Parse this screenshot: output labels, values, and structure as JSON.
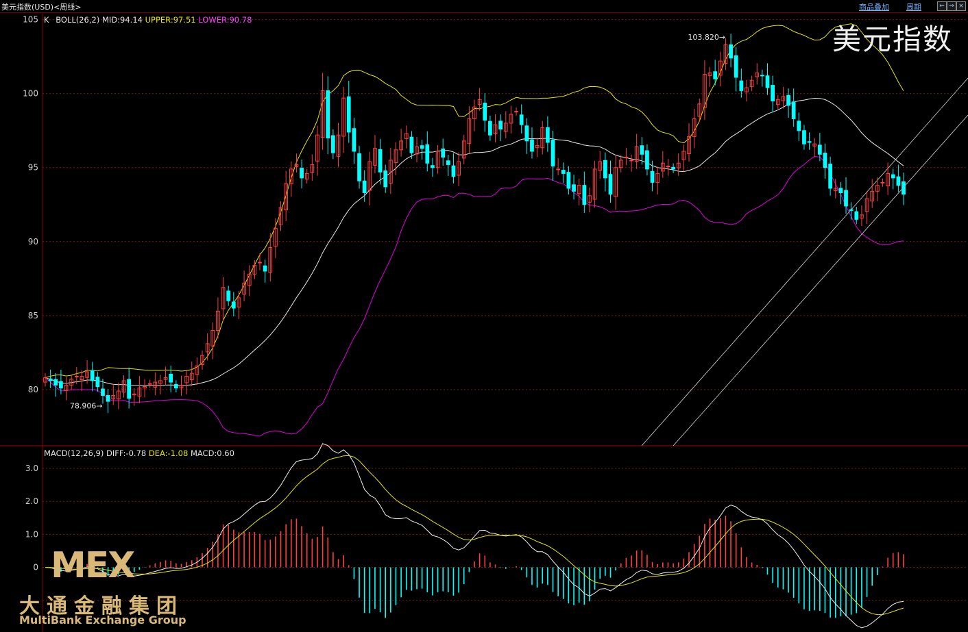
{
  "window": {
    "title": "美元指数(USD)<周线>",
    "buttons": [
      "商品叠加",
      "周期"
    ],
    "small_buttons": [
      "⇐",
      "⇒",
      "×"
    ]
  },
  "watermark": "美元指数",
  "logo": {
    "mark": "MEX",
    "chinese": "大通金融集团",
    "english": "MultiBank Exchange Group"
  },
  "colors": {
    "up": "#ff4040",
    "down": "#00ffff",
    "mid": "#e8e8e8",
    "upper": "#e6e600",
    "lower": "#e000e0",
    "grid": "#7a1a1a"
  },
  "chart_data": [
    {
      "type": "candlestick",
      "legend": {
        "k": "K",
        "boll": "BOLL(26,2)",
        "mid": "MID:94.14",
        "upper": "UPPER:97.51",
        "lower": "LOWER:90.78"
      },
      "y_ticks": [
        "105",
        "100",
        "95",
        "90",
        "85",
        "80"
      ],
      "ylim": [
        76.2,
        105.4
      ],
      "annotations": [
        {
          "label": "103.820",
          "at": 103.82
        },
        {
          "label": "78.906",
          "at": 78.906
        }
      ],
      "close": [
        80.8,
        80.6,
        80.3,
        80.1,
        80.3,
        80.7,
        80.9,
        80.9,
        81.2,
        80.6,
        80.2,
        79.6,
        79.2,
        79.6,
        79.9,
        80.6,
        79.4,
        79.7,
        80.1,
        80.2,
        80.4,
        80.5,
        80.6,
        80.8,
        80.5,
        80.1,
        80.3,
        80.9,
        81.1,
        81.6,
        82.3,
        83.1,
        84.0,
        85.3,
        86.9,
        86.0,
        85.5,
        86.2,
        87.2,
        87.8,
        88.4,
        88.6,
        88.0,
        89.6,
        90.9,
        92.3,
        93.9,
        94.9,
        95.2,
        94.3,
        94.6,
        95.2,
        97.2,
        100.2,
        97.0,
        96.0,
        97.2,
        99.7,
        97.4,
        96.1,
        94.1,
        93.3,
        95.4,
        96.3,
        94.7,
        93.7,
        95.5,
        96.2,
        96.8,
        97.3,
        96.0,
        96.4,
        96.3,
        95.3,
        95.0,
        96.1,
        95.7,
        95.2,
        94.4,
        95.4,
        96.8,
        98.3,
        99.1,
        99.6,
        98.2,
        97.2,
        97.9,
        97.6,
        98.0,
        98.6,
        98.8,
        97.9,
        96.8,
        96.1,
        96.5,
        97.7,
        96.7,
        95.1,
        94.9,
        94.6,
        93.6,
        93.4,
        93.8,
        92.5,
        93.1,
        94.9,
        95.4,
        94.3,
        93.2,
        95.0,
        95.5,
        95.7,
        95.5,
        96.4,
        95.9,
        94.9,
        94.0,
        94.6,
        95.3,
        95.1,
        94.9,
        95.3,
        96.1,
        97.1,
        98.3,
        99.3,
        101.3,
        101.4,
        101.0,
        102.2,
        103.3,
        102.4,
        101.1,
        100.2,
        100.4,
        100.9,
        101.4,
        101.2,
        100.4,
        99.5,
        99.6,
        99.8,
        99.2,
        98.3,
        97.5,
        96.6,
        96.7,
        96.6,
        95.9,
        95.0,
        93.6,
        93.6,
        93.3,
        92.4,
        92.1,
        91.5,
        91.8,
        92.9,
        93.4,
        93.8,
        94.0,
        94.6,
        94.3,
        93.8,
        93.2
      ]
    },
    {
      "type": "macd",
      "legend": {
        "name": "MACD(12,26,9)",
        "diff": "DIFF:-0.78",
        "dea": "DEA:-1.08",
        "macd": "MACD:0.60"
      },
      "y_ticks": [
        "3.0",
        "2.0",
        "1.0",
        "0"
      ],
      "ylim": [
        -1.9,
        3.5
      ]
    }
  ]
}
